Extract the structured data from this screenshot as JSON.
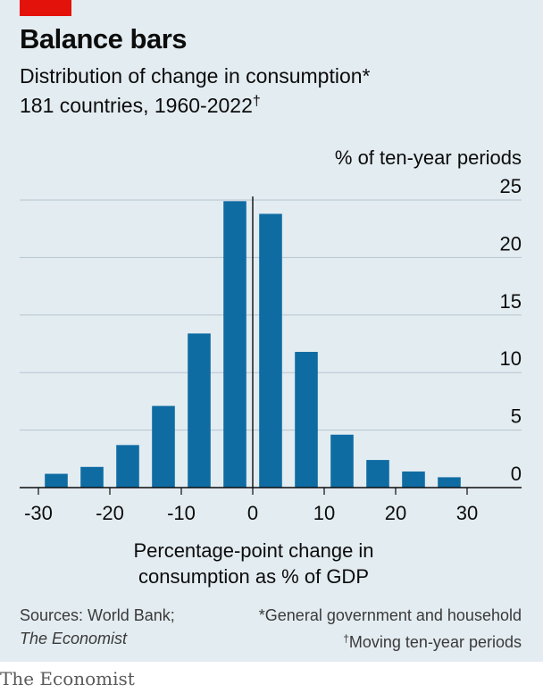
{
  "header": {
    "title": "Balance bars",
    "subtitle": "Distribution of change in consumption*",
    "subtitle2": "181 countries, 1960-2022",
    "subtitle2_mark": "†"
  },
  "footer": {
    "sources_line1": "Sources: World Bank;",
    "sources_line2": "The Economist",
    "note1": "*General government and household",
    "note2_mark": "†",
    "note2": "Moving ten-year periods"
  },
  "logo": "The Economist",
  "colors": {
    "bar": "#0f6ca3",
    "background": "#e3ecf1",
    "grid": "#b4c4d0",
    "accent": "#e3120b"
  },
  "chart_data": {
    "type": "bar",
    "title": "Balance bars",
    "xlabel": "Percentage-point change in consumption as % of GDP",
    "ylabel": "% of ten-year periods",
    "x": [
      -27.5,
      -22.5,
      -17.5,
      -12.5,
      -7.5,
      -2.5,
      2.5,
      7.5,
      12.5,
      17.5,
      22.5,
      27.5
    ],
    "values": [
      1.2,
      1.8,
      3.7,
      7.1,
      13.4,
      24.9,
      23.8,
      11.8,
      4.6,
      2.4,
      1.4,
      0.9
    ],
    "xlim": [
      -30,
      30
    ],
    "ylim": [
      0,
      25
    ],
    "xticks": [
      -30,
      -20,
      -10,
      0,
      10,
      20,
      30
    ],
    "xtick_labels": [
      "-30",
      "-20",
      "-10",
      "0",
      "10",
      "20",
      "30"
    ],
    "yticks": [
      0,
      5,
      10,
      15,
      20,
      25
    ],
    "ytick_labels": [
      "0",
      "5",
      "10",
      "15",
      "20",
      "25"
    ],
    "grid": true,
    "y_axis_side": "right"
  }
}
